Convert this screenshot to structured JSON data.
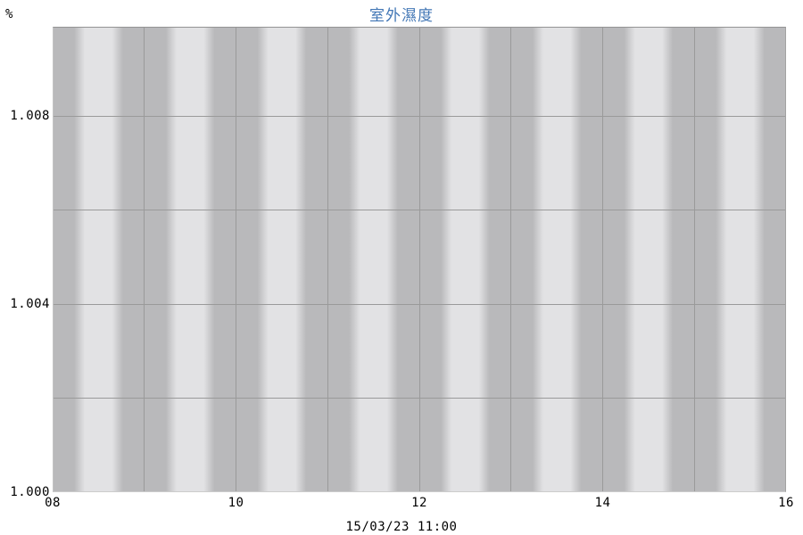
{
  "chart_data": {
    "type": "line",
    "title": "室外濕度",
    "y_axis_unit": "%",
    "ylabel": "%",
    "xlabel": "15/03/23 11:00",
    "xlim": [
      8,
      16
    ],
    "ylim": [
      1.0,
      1.0099
    ],
    "x_ticks": [
      {
        "value": 8,
        "label": "08"
      },
      {
        "value": 10,
        "label": "10"
      },
      {
        "value": 12,
        "label": "12"
      },
      {
        "value": 14,
        "label": "14"
      },
      {
        "value": 16,
        "label": "16"
      }
    ],
    "x_gridlines": [
      8,
      9,
      10,
      11,
      12,
      13,
      14,
      15,
      16
    ],
    "y_ticks": [
      {
        "value": 1.008,
        "label": "1.008"
      },
      {
        "value": 1.004,
        "label": "1.004"
      },
      {
        "value": 1.0,
        "label": "1.000"
      }
    ],
    "y_gridlines": [
      1.002,
      1.004,
      1.006,
      1.008
    ],
    "series": [],
    "grid": true,
    "legend": false,
    "background_bands": {
      "orientation": "vertical",
      "period_hours": 1,
      "dark_band_width_hours": 0.47,
      "dark_centered_on_hours": true
    },
    "colors": {
      "title": "#4176b5",
      "band_dark": "#b9b9bb",
      "band_light": "#e2e2e4",
      "gridline": "#9a9a9a",
      "tick_text": "#000000"
    }
  }
}
